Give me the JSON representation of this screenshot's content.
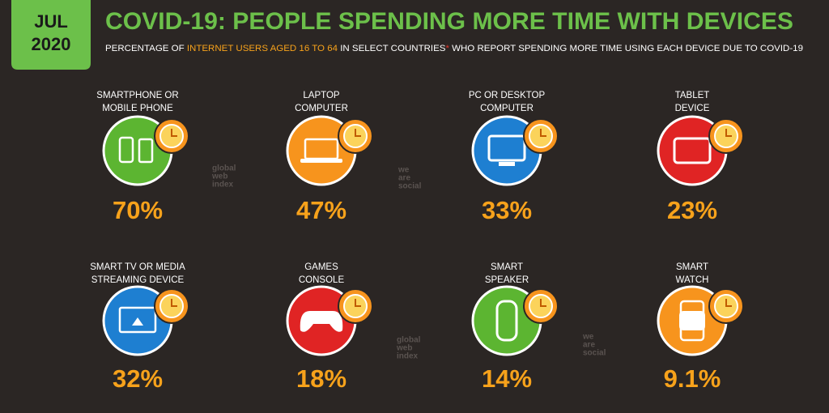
{
  "header": {
    "badge": [
      "JUL",
      "2020"
    ],
    "title": "COVID-19: PEOPLE SPENDING MORE TIME WITH DEVICES",
    "subtitle": [
      "PERCENTAGE OF ",
      "INTERNET USERS AGED 16 TO 64",
      " IN SELECT COUNTRIES",
      "*",
      " WHO REPORT SPENDING MORE TIME USING EACH DEVICE DUE TO COVID-19"
    ]
  },
  "items": [
    {
      "label": [
        "SMARTPHONE OR",
        "MOBILE PHONE"
      ],
      "value": "70%"
    },
    {
      "label": [
        "LAPTOP",
        "COMPUTER"
      ],
      "value": "47%"
    },
    {
      "label": [
        "PC OR DESKTOP",
        "COMPUTER"
      ],
      "value": "33%"
    },
    {
      "label": [
        "TABLET",
        "DEVICE"
      ],
      "value": "23%"
    },
    {
      "label": [
        "SMART TV OR MEDIA",
        "STREAMING DEVICE"
      ],
      "value": "32%"
    },
    {
      "label": [
        "GAMES",
        "CONSOLE"
      ],
      "value": "18%"
    },
    {
      "label": [
        "SMART",
        "SPEAKER"
      ],
      "value": "14%"
    },
    {
      "label": [
        "SMART",
        "WATCH"
      ],
      "value": "9.1%"
    }
  ],
  "watermarks": [
    [
      "global",
      "web",
      "index"
    ],
    [
      "we",
      "are",
      "social"
    ],
    [
      "global",
      "web",
      "index"
    ],
    [
      "we",
      "are",
      "social"
    ]
  ]
}
